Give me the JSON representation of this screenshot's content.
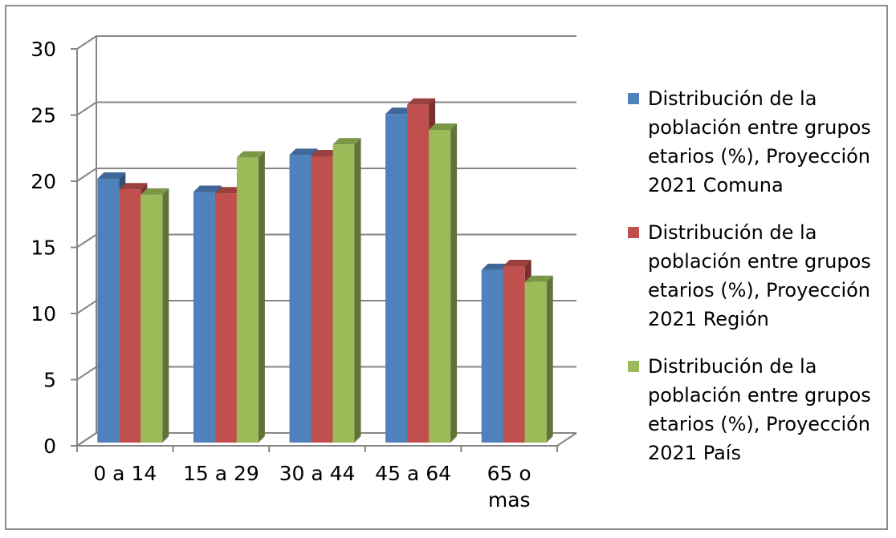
{
  "chart_data": {
    "type": "bar",
    "style": "3d-clustered-column",
    "title": "",
    "xlabel": "",
    "ylabel": "",
    "ylim": [
      0,
      30
    ],
    "yticks": [
      0,
      5,
      10,
      15,
      20,
      25,
      30
    ],
    "grid": true,
    "legend_position": "right",
    "categories": [
      [
        "0 a 14"
      ],
      [
        "15 a 29"
      ],
      [
        "30 a 44"
      ],
      [
        "45 a 64"
      ],
      [
        "65 o",
        "mas"
      ]
    ],
    "series": [
      {
        "name": "Distribución de la población entre grupos etarios (%), Proyección 2021 Comuna",
        "legend_lines": [
          "Distribución de la",
          "población entre grupos",
          "etarios (%), Proyección",
          "2021 Comuna"
        ],
        "color": "#4f81bd",
        "values": [
          20.3,
          19.3,
          22.1,
          25.2,
          13.4
        ]
      },
      {
        "name": "Distribución de la población entre grupos etarios (%), Proyección 2021 Región",
        "legend_lines": [
          "Distribución de la",
          "población entre grupos",
          "etarios (%), Proyección",
          "2021 Región"
        ],
        "color": "#c0504d",
        "values": [
          19.5,
          19.2,
          22.0,
          25.9,
          13.7
        ]
      },
      {
        "name": "Distribución de la población entre grupos etarios (%), Proyección 2021 País",
        "legend_lines": [
          "Distribución de la",
          "población entre grupos",
          "etarios (%), Proyección",
          "2021 País"
        ],
        "color": "#9bbb59",
        "values": [
          19.1,
          21.9,
          22.9,
          24.0,
          12.5
        ]
      }
    ]
  }
}
